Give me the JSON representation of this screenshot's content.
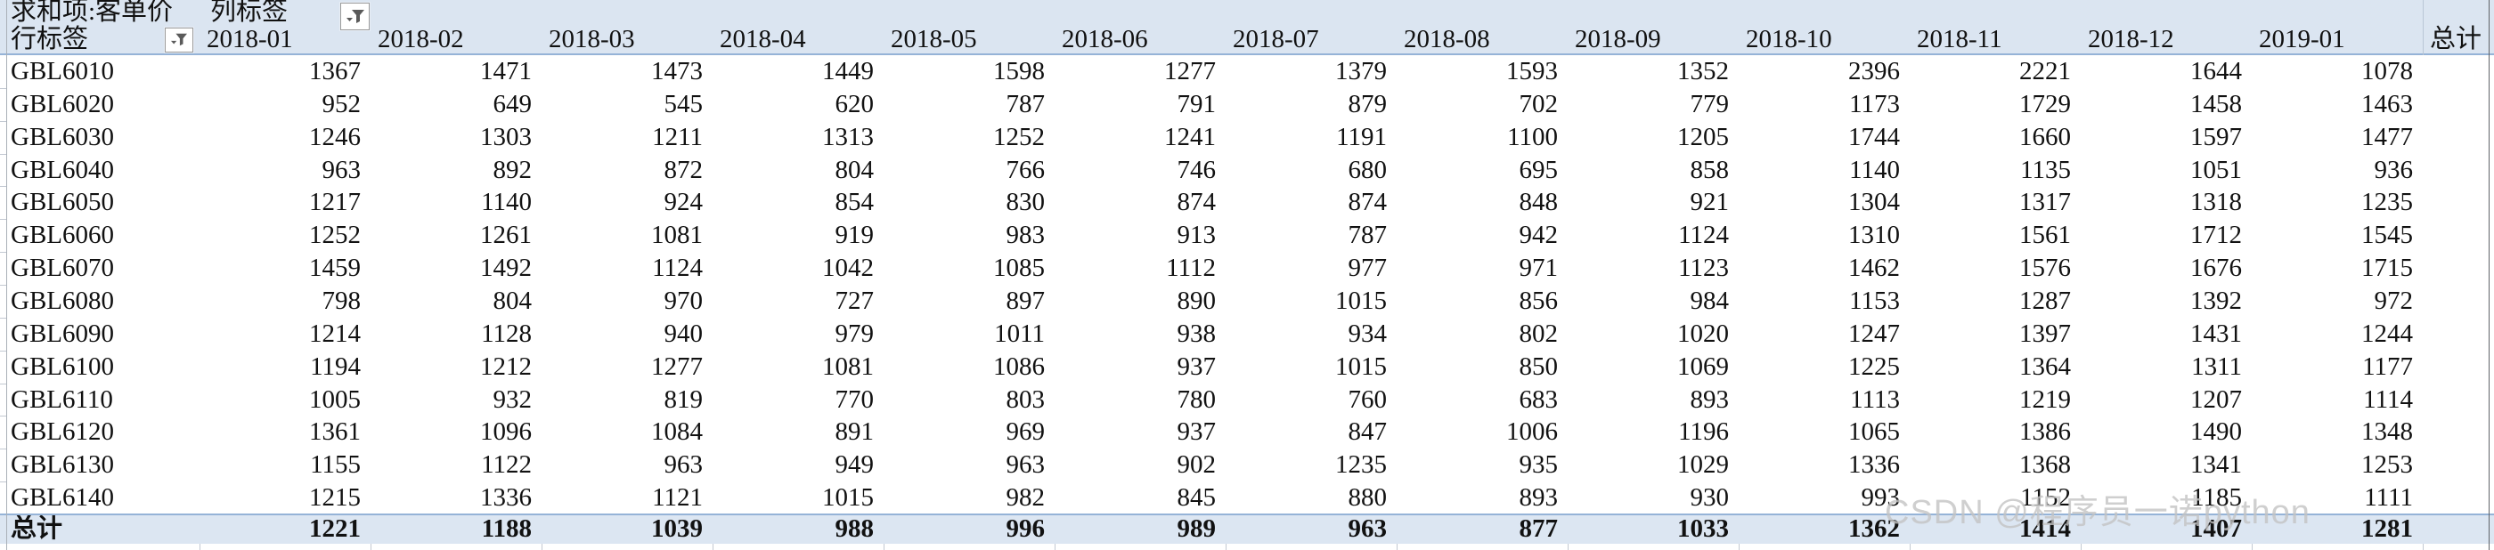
{
  "pivot": {
    "value_field_label": "求和项:客单价",
    "column_field_label": "列标签",
    "row_field_label": "行标签",
    "grand_total_label": "总计",
    "columns": [
      "2018-01",
      "2018-02",
      "2018-03",
      "2018-04",
      "2018-05",
      "2018-06",
      "2018-07",
      "2018-08",
      "2018-09",
      "2018-10",
      "2018-11",
      "2018-12",
      "2019-01"
    ],
    "rows": [
      {
        "label": "GBL6010",
        "values": [
          1367,
          1471,
          1473,
          1449,
          1598,
          1277,
          1379,
          1593,
          1352,
          2396,
          2221,
          1644,
          1078
        ]
      },
      {
        "label": "GBL6020",
        "values": [
          952,
          649,
          545,
          620,
          787,
          791,
          879,
          702,
          779,
          1173,
          1729,
          1458,
          1463
        ]
      },
      {
        "label": "GBL6030",
        "values": [
          1246,
          1303,
          1211,
          1313,
          1252,
          1241,
          1191,
          1100,
          1205,
          1744,
          1660,
          1597,
          1477
        ]
      },
      {
        "label": "GBL6040",
        "values": [
          963,
          892,
          872,
          804,
          766,
          746,
          680,
          695,
          858,
          1140,
          1135,
          1051,
          936
        ]
      },
      {
        "label": "GBL6050",
        "values": [
          1217,
          1140,
          924,
          854,
          830,
          874,
          874,
          848,
          921,
          1304,
          1317,
          1318,
          1235
        ]
      },
      {
        "label": "GBL6060",
        "values": [
          1252,
          1261,
          1081,
          919,
          983,
          913,
          787,
          942,
          1124,
          1310,
          1561,
          1712,
          1545
        ]
      },
      {
        "label": "GBL6070",
        "values": [
          1459,
          1492,
          1124,
          1042,
          1085,
          1112,
          977,
          971,
          1123,
          1462,
          1576,
          1676,
          1715
        ]
      },
      {
        "label": "GBL6080",
        "values": [
          798,
          804,
          970,
          727,
          897,
          890,
          1015,
          856,
          984,
          1153,
          1287,
          1392,
          972
        ]
      },
      {
        "label": "GBL6090",
        "values": [
          1214,
          1128,
          940,
          979,
          1011,
          938,
          934,
          802,
          1020,
          1247,
          1397,
          1431,
          1244
        ]
      },
      {
        "label": "GBL6100",
        "values": [
          1194,
          1212,
          1277,
          1081,
          1086,
          937,
          1015,
          850,
          1069,
          1225,
          1364,
          1311,
          1177
        ]
      },
      {
        "label": "GBL6110",
        "values": [
          1005,
          932,
          819,
          770,
          803,
          780,
          760,
          683,
          893,
          1113,
          1219,
          1207,
          1114
        ]
      },
      {
        "label": "GBL6120",
        "values": [
          1361,
          1096,
          1084,
          891,
          969,
          937,
          847,
          1006,
          1196,
          1065,
          1386,
          1490,
          1348
        ]
      },
      {
        "label": "GBL6130",
        "values": [
          1155,
          1122,
          963,
          949,
          963,
          902,
          1235,
          935,
          1029,
          1336,
          1368,
          1341,
          1253
        ]
      },
      {
        "label": "GBL6140",
        "values": [
          1215,
          1336,
          1121,
          1015,
          982,
          845,
          880,
          893,
          930,
          993,
          1152,
          1185,
          1111
        ]
      }
    ],
    "total_row": {
      "label": "总计",
      "values": [
        1221,
        1188,
        1039,
        988,
        996,
        989,
        963,
        877,
        1033,
        1362,
        1414,
        1407,
        1281
      ]
    }
  },
  "icons": {
    "column_filter": "funnel-dropdown-icon",
    "row_filter": "funnel-dropdown-icon"
  },
  "watermark": {
    "text": "CSDN @程序员一诺python"
  },
  "colors": {
    "header_bg": "#dbe5f1",
    "total_row_bg": "#dce6f2",
    "divider_blue": "#95b3d7",
    "gridline_gray": "#c3c9d2",
    "left_edge_line": "#aab0b8",
    "right_edge_line": "#5f6368",
    "watermark_gray": "#c4c4c4",
    "text": "#111111"
  }
}
